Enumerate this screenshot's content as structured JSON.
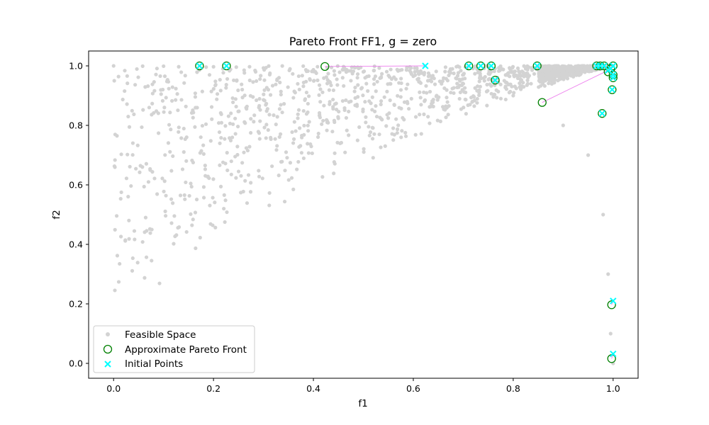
{
  "chart_data": {
    "type": "scatter",
    "title": "Pareto Front FF1, g = zero",
    "xlabel": "f1",
    "ylabel": "f2",
    "xlim": [
      -0.05,
      1.05
    ],
    "ylim": [
      -0.05,
      1.05
    ],
    "xticks": [
      0.0,
      0.2,
      0.4,
      0.6,
      0.8,
      1.0
    ],
    "yticks": [
      0.0,
      0.2,
      0.4,
      0.6,
      0.8,
      1.0
    ],
    "xtick_labels": [
      "0.0",
      "0.2",
      "0.4",
      "0.6",
      "0.8",
      "1.0"
    ],
    "ytick_labels": [
      "0.0",
      "0.2",
      "0.4",
      "0.6",
      "0.8",
      "1.0"
    ],
    "grid": false,
    "legend_position": "lower-left",
    "series": [
      {
        "name": "Feasible Space",
        "marker": "dot",
        "color": "#d3d3d3",
        "description_region": "curved band from (0,1) to (1,0) along the FF1 front",
        "sample_points": [
          [
            0.0,
            1.0
          ],
          [
            0.1,
            0.999
          ],
          [
            0.2,
            0.997
          ],
          [
            0.3,
            0.993
          ],
          [
            0.4,
            0.987
          ],
          [
            0.5,
            0.98
          ],
          [
            0.6,
            0.965
          ],
          [
            0.7,
            0.94
          ],
          [
            0.8,
            0.9
          ],
          [
            0.9,
            0.8
          ],
          [
            0.95,
            0.7
          ],
          [
            0.98,
            0.5
          ],
          [
            0.99,
            0.3
          ],
          [
            0.995,
            0.1
          ],
          [
            1.0,
            0.0
          ]
        ]
      },
      {
        "name": "Approximate Pareto Front",
        "marker": "open-circle",
        "color": "#008000",
        "points": [
          [
            0.172,
            1.0
          ],
          [
            0.226,
            1.0
          ],
          [
            0.423,
            0.998
          ],
          [
            0.711,
            1.0
          ],
          [
            0.735,
            1.0
          ],
          [
            0.756,
            1.0
          ],
          [
            0.764,
            0.952
          ],
          [
            0.848,
            1.0
          ],
          [
            0.858,
            0.877
          ],
          [
            0.967,
            1.0
          ],
          [
            0.974,
            1.0
          ],
          [
            0.978,
            0.84
          ],
          [
            0.982,
            1.0
          ],
          [
            0.99,
            0.98
          ],
          [
            0.995,
            0.99
          ],
          [
            1.0,
            1.0
          ],
          [
            1.0,
            0.97
          ],
          [
            1.0,
            0.96
          ],
          [
            0.998,
            0.92
          ],
          [
            0.997,
            0.197
          ],
          [
            0.997,
            0.016
          ]
        ]
      },
      {
        "name": "Initial Points",
        "marker": "x",
        "color": "#00ffff",
        "points": [
          [
            0.172,
            1.0
          ],
          [
            0.226,
            1.0
          ],
          [
            0.624,
            1.0
          ],
          [
            0.711,
            1.0
          ],
          [
            0.735,
            1.0
          ],
          [
            0.756,
            1.0
          ],
          [
            0.764,
            0.952
          ],
          [
            0.848,
            1.0
          ],
          [
            0.967,
            1.0
          ],
          [
            0.974,
            1.0
          ],
          [
            0.978,
            0.84
          ],
          [
            0.982,
            1.0
          ],
          [
            0.99,
            0.985
          ],
          [
            0.995,
            0.99
          ],
          [
            1.0,
            1.0
          ],
          [
            1.0,
            0.97
          ],
          [
            1.0,
            0.96
          ],
          [
            0.998,
            0.92
          ],
          [
            1.0,
            0.21
          ],
          [
            1.0,
            0.032
          ]
        ]
      }
    ],
    "connectors": {
      "color": "#ee82ee",
      "segments": [
        [
          [
            0.423,
            0.998
          ],
          [
            0.624,
            1.0
          ]
        ],
        [
          [
            0.858,
            0.877
          ],
          [
            0.99,
            0.985
          ]
        ],
        [
          [
            0.997,
            0.197
          ],
          [
            1.0,
            0.21
          ]
        ],
        [
          [
            0.997,
            0.016
          ],
          [
            1.0,
            0.032
          ]
        ]
      ]
    }
  }
}
